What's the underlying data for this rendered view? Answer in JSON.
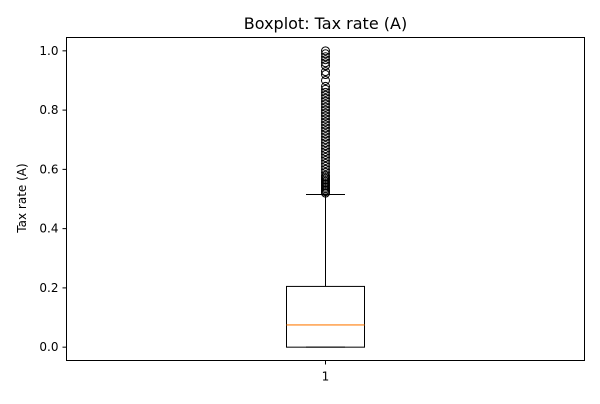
{
  "chart_data": {
    "type": "boxplot",
    "title": "Boxplot:  Tax rate (A)",
    "xlabel": "",
    "ylabel": "Tax rate (A)",
    "categories": [
      "1"
    ],
    "ylim": [
      -0.045,
      1.045
    ],
    "y_ticks": [
      0.0,
      0.2,
      0.4,
      0.6,
      0.8,
      1.0
    ],
    "y_tick_labels": [
      "0.0",
      "0.2",
      "0.4",
      "0.6",
      "0.8",
      "1.0"
    ],
    "grid": false,
    "series": [
      {
        "category": "1",
        "whisker_low": 0.0,
        "q1": 0.0,
        "median": 0.075,
        "q3": 0.205,
        "whisker_high": 0.515,
        "outliers": [
          0.52,
          0.525,
          0.53,
          0.535,
          0.54,
          0.545,
          0.55,
          0.555,
          0.56,
          0.565,
          0.57,
          0.575,
          0.58,
          0.59,
          0.6,
          0.61,
          0.62,
          0.63,
          0.64,
          0.65,
          0.66,
          0.67,
          0.68,
          0.69,
          0.7,
          0.71,
          0.72,
          0.73,
          0.74,
          0.75,
          0.76,
          0.77,
          0.78,
          0.79,
          0.8,
          0.81,
          0.82,
          0.83,
          0.84,
          0.85,
          0.86,
          0.87,
          0.88,
          0.9,
          0.92,
          0.93,
          0.95,
          0.96,
          0.97,
          0.98,
          0.99,
          1.0
        ]
      }
    ],
    "colors": {
      "box": "#000000",
      "median": "#ff7f0e",
      "outlier": "#000000"
    }
  }
}
